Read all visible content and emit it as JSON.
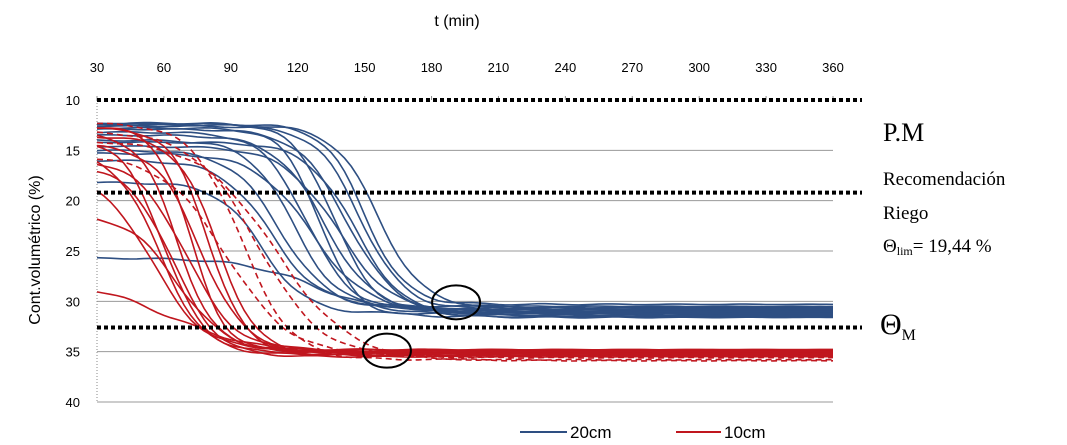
{
  "chart_data": {
    "type": "line",
    "title": "",
    "xlabel": "t (min)",
    "ylabel": "Cont.volumétrico (%)",
    "x_axis_position": "top",
    "y_axis_reversed": true,
    "xlim": [
      30,
      360
    ],
    "ylim": [
      10,
      40
    ],
    "xticks": [
      30,
      60,
      90,
      120,
      150,
      180,
      210,
      240,
      270,
      300,
      330,
      360
    ],
    "yticks": [
      10,
      15,
      20,
      25,
      30,
      35,
      40
    ],
    "grid": "horizontal",
    "colors": {
      "20cm": "#2e4f82",
      "10cm": "#c0161e"
    },
    "series": [
      {
        "name": "20cm",
        "y0": 12.3,
        "y1": 31.0,
        "mid": 136,
        "k": 0.11
      },
      {
        "name": "20cm",
        "y0": 12.6,
        "y1": 30.8,
        "mid": 148,
        "k": 0.1
      },
      {
        "name": "20cm",
        "y0": 12.9,
        "y1": 31.2,
        "mid": 142,
        "k": 0.09
      },
      {
        "name": "20cm",
        "y0": 12.5,
        "y1": 30.6,
        "mid": 156,
        "k": 0.1
      },
      {
        "name": "20cm",
        "y0": 12.8,
        "y1": 31.5,
        "mid": 130,
        "k": 0.12
      },
      {
        "name": "20cm",
        "y0": 13.2,
        "y1": 30.9,
        "mid": 124,
        "k": 0.1
      },
      {
        "name": "20cm",
        "y0": 13.5,
        "y1": 31.1,
        "mid": 132,
        "k": 0.09
      },
      {
        "name": "20cm",
        "y0": 14.0,
        "y1": 30.7,
        "mid": 118,
        "k": 0.1
      },
      {
        "name": "20cm",
        "y0": 14.6,
        "y1": 31.3,
        "mid": 138,
        "k": 0.08
      },
      {
        "name": "20cm",
        "y0": 15.0,
        "y1": 30.8,
        "mid": 112,
        "k": 0.09
      },
      {
        "name": "20cm",
        "y0": 15.3,
        "y1": 31.0,
        "mid": 126,
        "k": 0.08
      },
      {
        "name": "20cm",
        "y0": 14.2,
        "y1": 31.6,
        "mid": 146,
        "k": 0.09
      },
      {
        "name": "20cm",
        "y0": 16.0,
        "y1": 30.5,
        "mid": 108,
        "k": 0.09
      },
      {
        "name": "20cm",
        "y0": 18.2,
        "y1": 31.2,
        "mid": 104,
        "k": 0.1
      },
      {
        "name": "20cm",
        "y0": 25.7,
        "y1": 31.4,
        "mid": 128,
        "k": 0.06
      },
      {
        "name": "20cm",
        "y0": 12.4,
        "y1": 30.3,
        "mid": 150,
        "k": 0.11
      },
      {
        "name": "10cm",
        "y0": 12.6,
        "y1": 35.0,
        "mid": 72,
        "k": 0.13
      },
      {
        "name": "10cm",
        "y0": 12.8,
        "y1": 35.2,
        "mid": 80,
        "k": 0.12
      },
      {
        "name": "10cm",
        "y0": 13.3,
        "y1": 34.8,
        "mid": 66,
        "k": 0.12
      },
      {
        "name": "10cm",
        "y0": 13.6,
        "y1": 35.4,
        "mid": 84,
        "k": 0.11
      },
      {
        "name": "10cm",
        "y0": 13.8,
        "y1": 35.1,
        "mid": 60,
        "k": 0.11
      },
      {
        "name": "10cm",
        "y0": 14.4,
        "y1": 34.9,
        "mid": 76,
        "k": 0.1
      },
      {
        "name": "10cm",
        "y0": 15.0,
        "y1": 35.3,
        "mid": 58,
        "k": 0.1
      },
      {
        "name": "10cm",
        "y0": 15.8,
        "y1": 35.0,
        "mid": 70,
        "k": 0.09
      },
      {
        "name": "10cm",
        "y0": 16.5,
        "y1": 35.5,
        "mid": 64,
        "k": 0.1
      },
      {
        "name": "10cm",
        "y0": 17.5,
        "y1": 34.8,
        "mid": 55,
        "k": 0.09
      },
      {
        "name": "10cm",
        "y0": 21.3,
        "y1": 35.0,
        "mid": 66,
        "k": 0.09
      },
      {
        "name": "10cm",
        "y0": 27.7,
        "y1": 35.2,
        "mid": 62,
        "k": 0.05
      },
      {
        "name": "10cm",
        "y0": 12.3,
        "y1": 35.8,
        "mid": 95,
        "k": 0.09,
        "dashed": true
      },
      {
        "name": "10cm",
        "y0": 13.1,
        "y1": 35.6,
        "mid": 102,
        "k": 0.07,
        "dashed": true
      },
      {
        "name": "10cm",
        "y0": 14.0,
        "y1": 35.9,
        "mid": 110,
        "k": 0.06,
        "dashed": true
      },
      {
        "name": "10cm",
        "y0": 15.5,
        "y1": 35.4,
        "mid": 88,
        "k": 0.07,
        "dashed": true
      }
    ],
    "reference_lines": [
      {
        "label": "P.M",
        "y": 10
      },
      {
        "label": "Recomendación Riego",
        "y": 19.2
      },
      {
        "label": "ΘM",
        "y": 32.6
      }
    ],
    "annotation": {
      "theta_lim": "= 19,44 %"
    },
    "circled_points": [
      {
        "x": 191,
        "y": 30.1
      },
      {
        "x": 160,
        "y": 34.9
      }
    ],
    "legend": {
      "position": "bottom-right",
      "entries": [
        "20cm",
        "10cm"
      ]
    }
  },
  "labels": {
    "pm": "P.M",
    "rec1": "Recomendación",
    "rec2": "Riego",
    "theta_sym": "Θ",
    "lim_sub": "lim",
    "lim_value": "= 19,44 %",
    "thetaM_sym": "Θ",
    "thetaM_sub": "M"
  }
}
